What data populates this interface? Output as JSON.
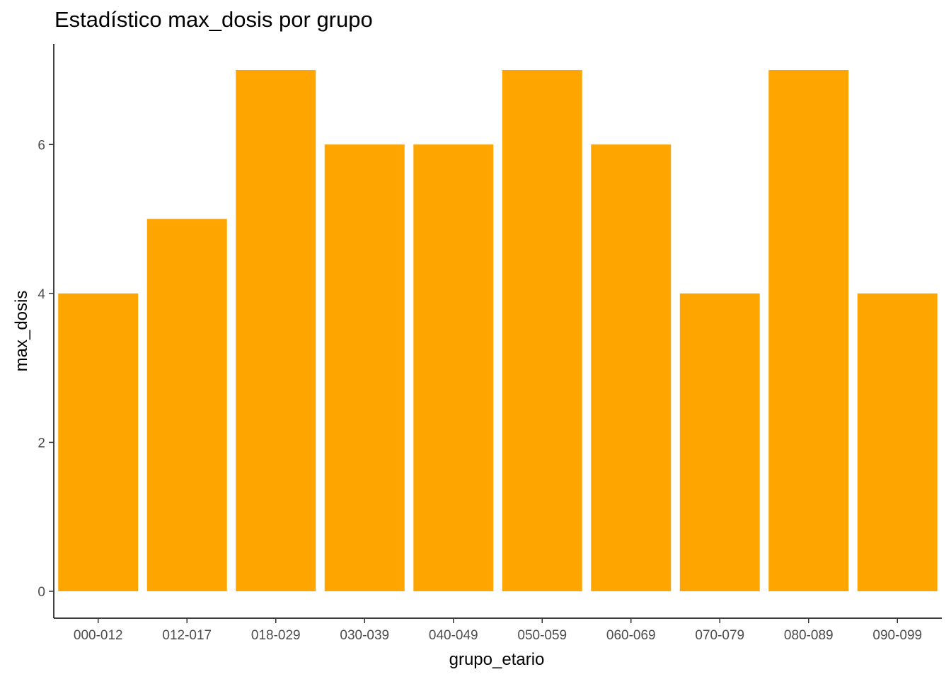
{
  "chart_data": {
    "type": "bar",
    "title": "Estadístico max_dosis por grupo",
    "xlabel": "grupo_etario",
    "ylabel": "max_dosis",
    "categories": [
      "000-012",
      "012-017",
      "018-029",
      "030-039",
      "040-049",
      "050-059",
      "060-069",
      "070-079",
      "080-089",
      "090-099"
    ],
    "values": [
      4,
      5,
      7,
      6,
      6,
      7,
      6,
      4,
      7,
      4
    ],
    "yticks": [
      0,
      2,
      4,
      6
    ],
    "ylim": [
      0,
      7
    ],
    "bar_color": "#FFA500",
    "grid": false,
    "legend": "none"
  }
}
